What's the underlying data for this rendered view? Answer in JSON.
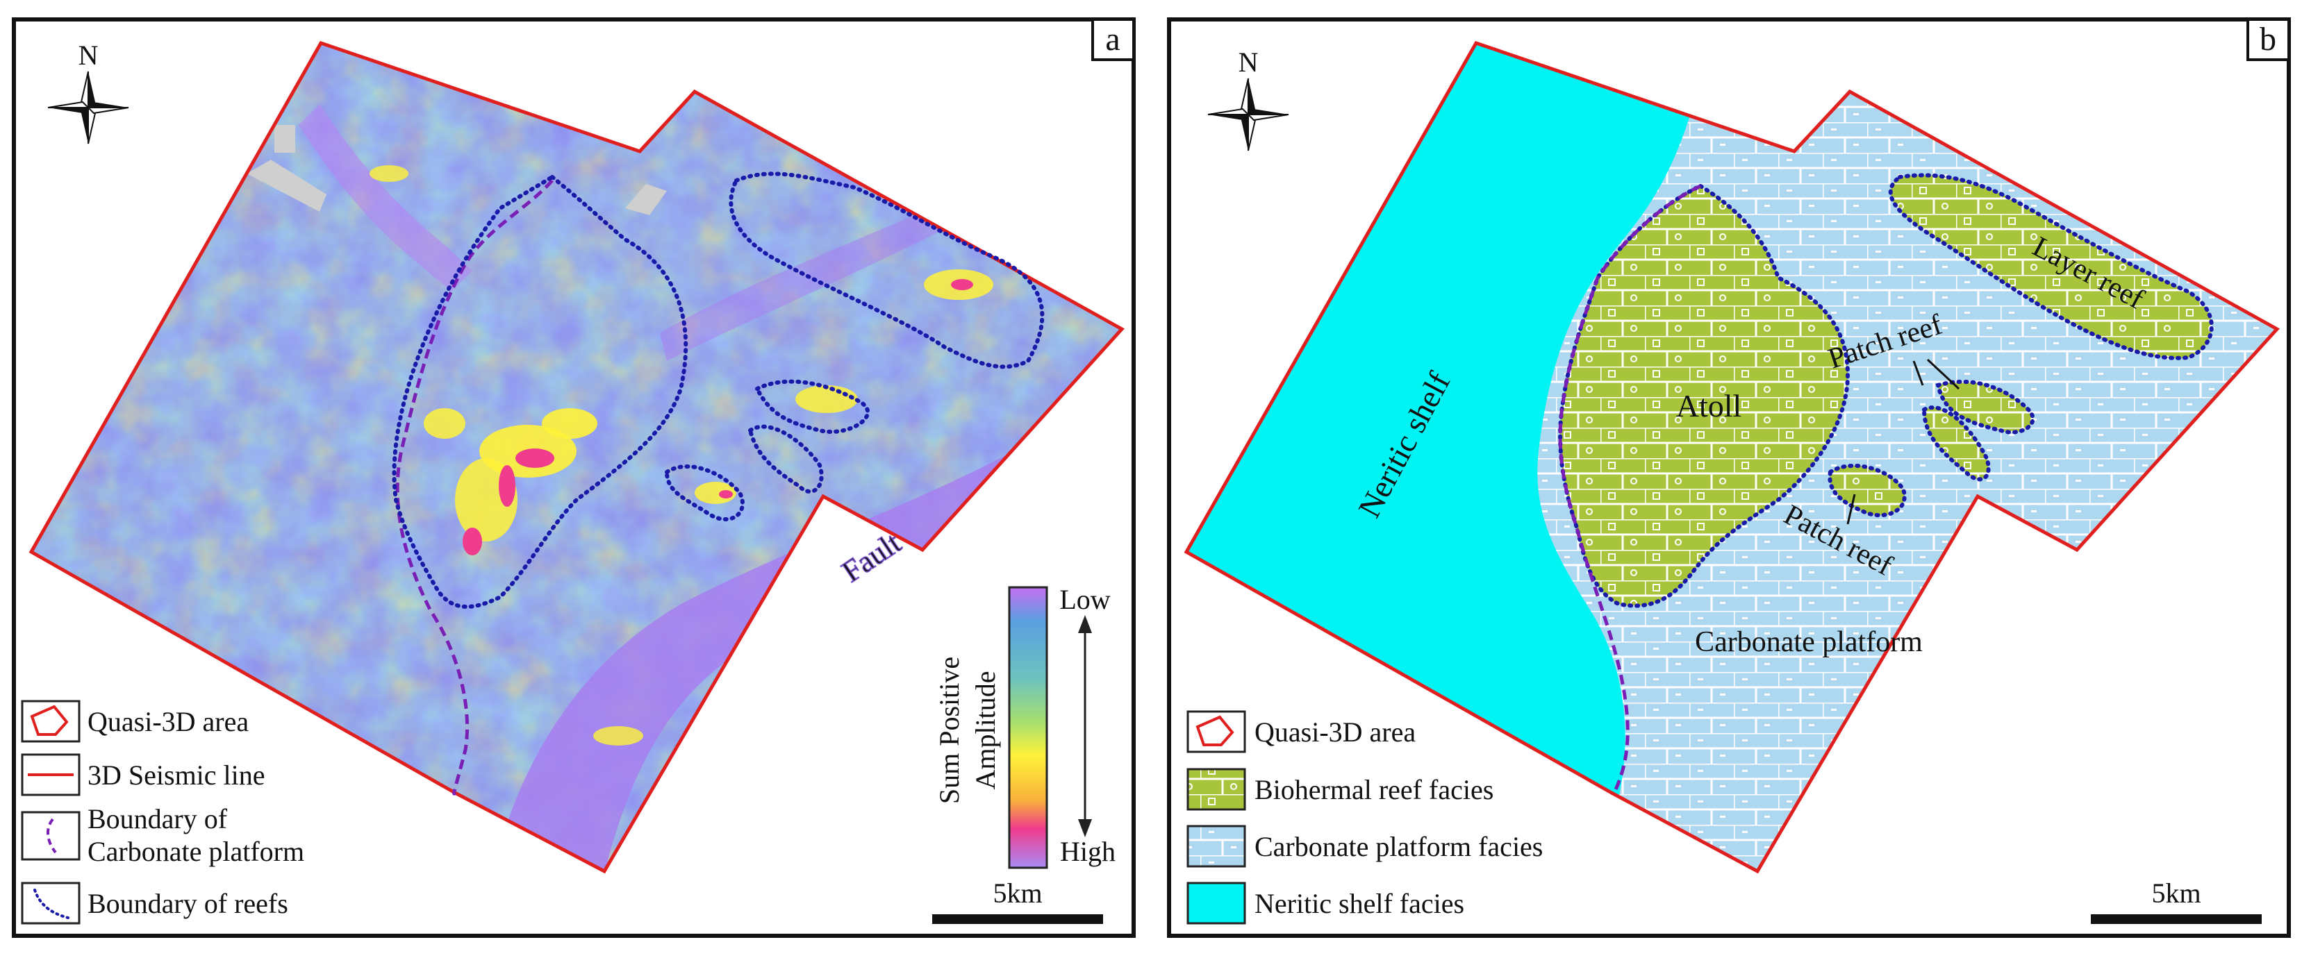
{
  "panel_a": {
    "label": "a",
    "north_label": "N",
    "fault_label": "Fault",
    "colorbar": {
      "title_line1": "Sum Positive",
      "title_line2": "Amplitude",
      "low_label": "Low",
      "high_label": "High",
      "colors": [
        "#5a9fe0",
        "#6cc2c0",
        "#a6df6e",
        "#fff23a",
        "#f7b13a",
        "#f03c8c",
        "#c83cf0",
        "#a88af5"
      ]
    },
    "legend": [
      {
        "symbol": "quasi-3d-polygon",
        "text": "Quasi-3D area"
      },
      {
        "symbol": "red-line",
        "text": "3D Seismic line"
      },
      {
        "symbol": "purple-dashed",
        "text": "Boundary of",
        "text2": "Carbonate platform"
      },
      {
        "symbol": "blue-dotted",
        "text": "Boundary of reefs"
      }
    ],
    "scale_label": "5km"
  },
  "panel_b": {
    "label": "b",
    "north_label": "N",
    "region_labels": {
      "neritic": "Neritic shelf",
      "atoll": "Atoll",
      "patch_reef_1": "Patch reef",
      "patch_reef_2": "Patch reef",
      "layer_reef": "Layer reef",
      "carbonate": "Carbonate platform"
    },
    "legend": [
      {
        "symbol": "quasi-3d-polygon",
        "text": "Quasi-3D area"
      },
      {
        "symbol": "biohermal",
        "text": "Biohermal reef facies"
      },
      {
        "symbol": "carbonate",
        "text": "Carbonate platform facies"
      },
      {
        "symbol": "neritic",
        "text": "Neritic shelf facies"
      }
    ],
    "scale_label": "5km"
  },
  "colors": {
    "survey_border": "#e0201e",
    "platform_boundary": "#7a1fb5",
    "reef_boundary": "#1a1aa8",
    "neritic": "#00f4f4",
    "carbonate_bg": "#aed8f0",
    "biohermal": "#a8c43a",
    "amplitude_base": "#8f8cf0"
  }
}
